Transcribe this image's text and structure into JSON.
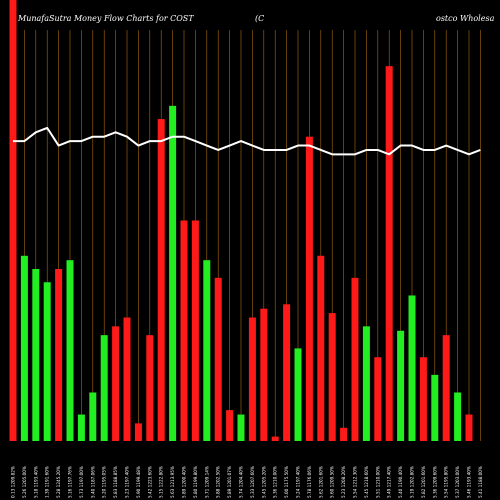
{
  "chart_data": {
    "type": "bar",
    "title_parts": [
      "MunafaSutra  Money Flow  Charts for COST",
      "(C",
      "ostco  Wholesa"
    ],
    "ylim": [
      0,
      100
    ],
    "grid": "vertical",
    "colors": {
      "up": "#22ee22",
      "down": "#ff1a1a",
      "line": "#ffffff",
      "grid": "#a86a10",
      "background": "#000000"
    },
    "categories": [
      "0.13 1209.82%",
      "5.26 1205.00%",
      "5.18 1193.40%",
      "1.39 1191.60%",
      "5.28 1245.20%",
      "5.16 1197.76%",
      "5.73 1197.00%",
      "5.40 1187.06%",
      "5.20 1195.05%",
      "5.83 1188.85%",
      "5.23 1197.40%",
      "5.90 1199.48%",
      "5.42 1223.60%",
      "5.15 1222.80%",
      "5.63 1213.95%",
      "5.89 1200.40%",
      "5.80 1199.80%",
      "5.71 1209.14%",
      "5.88 1202.50%",
      "5.89 1201.07%",
      "5.74 1204.40%",
      "5.33 1207.60%",
      "5.45 1205.20%",
      "5.36 1210.00%",
      "5.00 1175.50%",
      "5.24 1197.40%",
      "5.78 1176.06%",
      "5.62 1201.60%",
      "5.60 1209.50%",
      "5.23 1208.20%",
      "5.54 1212.30%",
      "5.45 1218.60%",
      "5.51 1210.00%",
      "5.49 1217.40%",
      "5.40 1190.40%",
      "5.19 1202.80%",
      "5.82 1201.60%",
      "5.36 1209.60%",
      "5.54 1195.80%",
      "5.37 1203.00%",
      "5.46 1193.40%",
      "5.41 1188.00%"
    ],
    "series": [
      {
        "values": [
          100,
          42,
          39,
          36,
          39,
          41,
          6,
          11,
          24,
          26,
          28,
          4,
          24,
          73,
          76,
          50,
          50,
          41,
          37,
          7,
          6,
          28,
          30,
          1,
          31,
          21,
          69,
          42,
          29,
          3,
          37,
          26,
          19,
          85,
          25,
          33,
          19,
          15,
          24,
          11,
          6,
          0
        ]
      },
      {
        "values": [
          68,
          68,
          70,
          71,
          67,
          68,
          68,
          69,
          69,
          70,
          69,
          67,
          68,
          68,
          69,
          69,
          68,
          67,
          66,
          67,
          68,
          67,
          66,
          66,
          66,
          67,
          67,
          66,
          65,
          65,
          65,
          66,
          66,
          65,
          67,
          67,
          66,
          66,
          67,
          66,
          65,
          66
        ]
      }
    ],
    "bar_up": [
      false,
      true,
      true,
      true,
      false,
      true,
      true,
      true,
      true,
      false,
      false,
      false,
      false,
      false,
      true,
      false,
      false,
      true,
      false,
      false,
      true,
      false,
      false,
      false,
      false,
      true,
      false,
      false,
      false,
      false,
      false,
      true,
      false,
      false,
      true,
      true,
      false,
      true,
      false,
      true,
      false,
      false
    ]
  }
}
